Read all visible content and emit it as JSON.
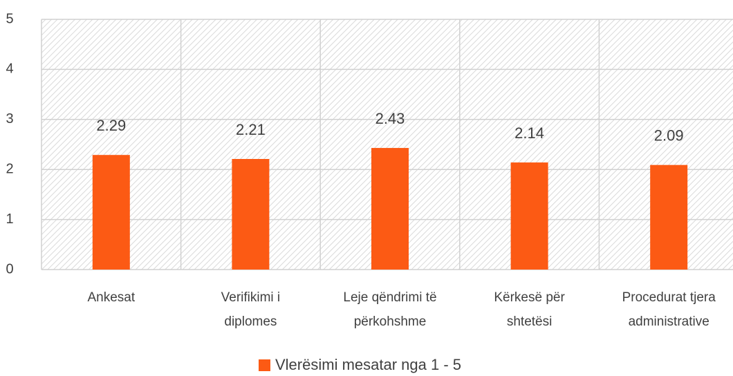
{
  "chart_data": {
    "type": "bar",
    "categories": [
      [
        "Ankesat"
      ],
      [
        "Verifikimi i",
        "diplomes"
      ],
      [
        "Leje qëndrimi të",
        "përkohshme"
      ],
      [
        "Kërkesë për",
        "shtetësi"
      ],
      [
        "Procedurat tjera",
        "administrative"
      ]
    ],
    "series": [
      {
        "name": "Vlerësimi mesatar nga 1 - 5",
        "color": "#fc5a14",
        "values": [
          2.29,
          2.21,
          2.43,
          2.14,
          2.09
        ]
      }
    ],
    "ylim": [
      0,
      5
    ],
    "yticks": [
      0,
      1,
      2,
      3,
      4,
      5
    ],
    "grid": true,
    "legend": "bottom"
  }
}
